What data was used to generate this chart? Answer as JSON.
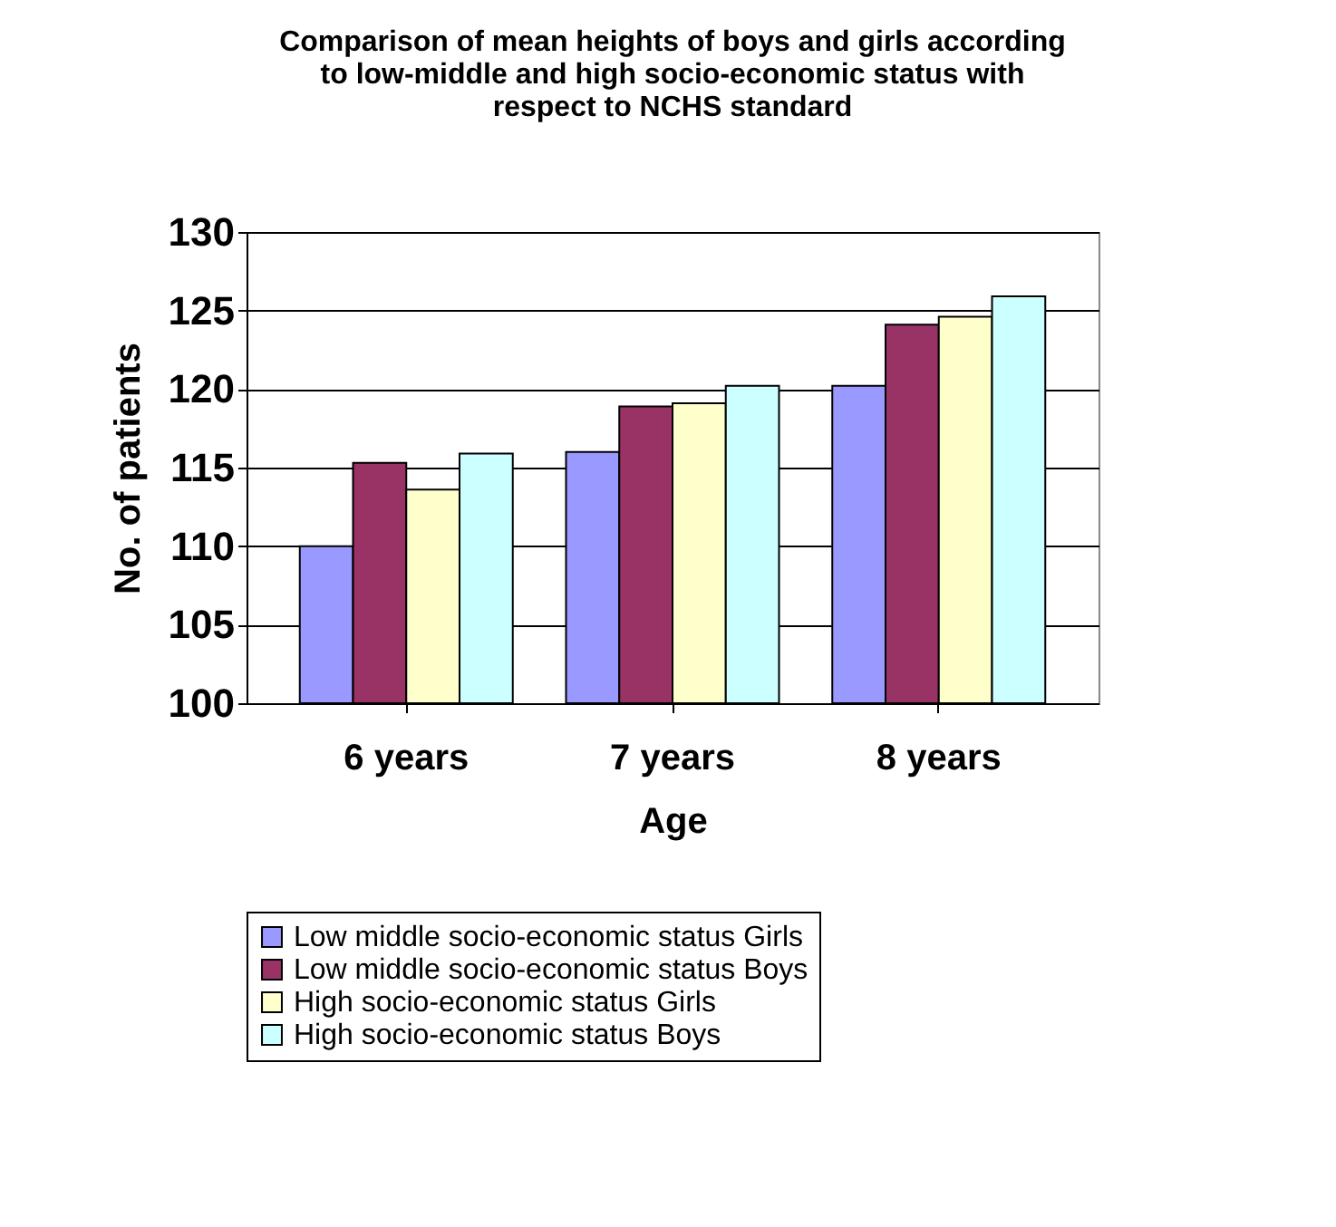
{
  "chart_data": {
    "type": "bar",
    "title": [
      "Comparison of mean heights of boys and girls according",
      "to low-middle and high socio-economic status with",
      "respect to NCHS standard"
    ],
    "xlabel": "Age",
    "ylabel": "No. of patients",
    "categories": [
      "6 years",
      "7 years",
      "8 years"
    ],
    "series": [
      {
        "name": "Low middle socio-economic status Girls",
        "color": "#9999ff",
        "values": [
          110.0,
          116.0,
          120.2
        ]
      },
      {
        "name": "Low middle socio-economic status Boys",
        "color": "#993366",
        "values": [
          115.3,
          118.9,
          124.1
        ]
      },
      {
        "name": "High socio-economic status Girls",
        "color": "#ffffcc",
        "values": [
          113.6,
          119.1,
          124.6
        ]
      },
      {
        "name": "High socio-economic status Boys",
        "color": "#ccffff",
        "values": [
          115.9,
          120.2,
          125.9
        ]
      }
    ],
    "ylim": [
      100,
      130
    ],
    "yticks": [
      100,
      105,
      110,
      115,
      120,
      125,
      130
    ],
    "grid": "y",
    "legend": "bottom"
  }
}
